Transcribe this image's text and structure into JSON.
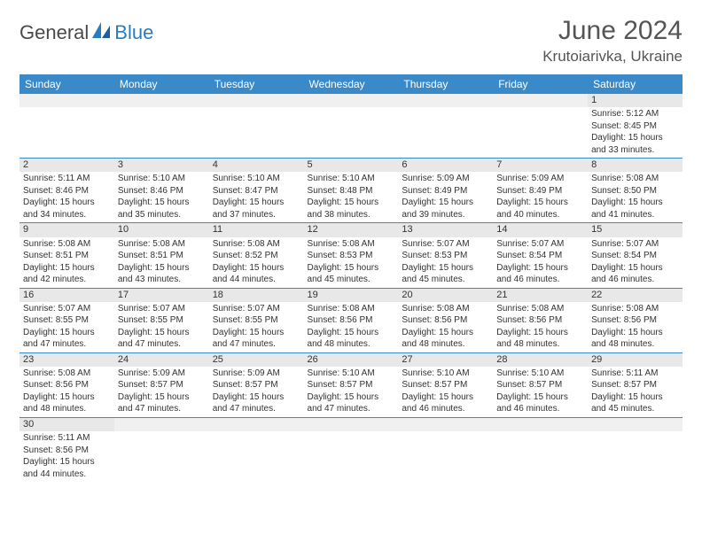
{
  "logo": {
    "general": "General",
    "blue": "Blue"
  },
  "title": {
    "month_year": "June 2024",
    "location": "Krutoiarivka, Ukraine"
  },
  "colors": {
    "header_bg": "#3a89c9",
    "header_text": "#ffffff",
    "daynum_bg": "#e8e8e8",
    "border": "#3a89c9",
    "blank_bg": "#f0f0f0",
    "text": "#333333",
    "logo_gray": "#4a4a4a",
    "logo_blue": "#2b7bbf"
  },
  "day_headers": [
    "Sunday",
    "Monday",
    "Tuesday",
    "Wednesday",
    "Thursday",
    "Friday",
    "Saturday"
  ],
  "weeks": [
    [
      null,
      null,
      null,
      null,
      null,
      null,
      {
        "n": "1",
        "sr": "Sunrise: 5:12 AM",
        "ss": "Sunset: 8:45 PM",
        "dl1": "Daylight: 15 hours",
        "dl2": "and 33 minutes."
      }
    ],
    [
      {
        "n": "2",
        "sr": "Sunrise: 5:11 AM",
        "ss": "Sunset: 8:46 PM",
        "dl1": "Daylight: 15 hours",
        "dl2": "and 34 minutes."
      },
      {
        "n": "3",
        "sr": "Sunrise: 5:10 AM",
        "ss": "Sunset: 8:46 PM",
        "dl1": "Daylight: 15 hours",
        "dl2": "and 35 minutes."
      },
      {
        "n": "4",
        "sr": "Sunrise: 5:10 AM",
        "ss": "Sunset: 8:47 PM",
        "dl1": "Daylight: 15 hours",
        "dl2": "and 37 minutes."
      },
      {
        "n": "5",
        "sr": "Sunrise: 5:10 AM",
        "ss": "Sunset: 8:48 PM",
        "dl1": "Daylight: 15 hours",
        "dl2": "and 38 minutes."
      },
      {
        "n": "6",
        "sr": "Sunrise: 5:09 AM",
        "ss": "Sunset: 8:49 PM",
        "dl1": "Daylight: 15 hours",
        "dl2": "and 39 minutes."
      },
      {
        "n": "7",
        "sr": "Sunrise: 5:09 AM",
        "ss": "Sunset: 8:49 PM",
        "dl1": "Daylight: 15 hours",
        "dl2": "and 40 minutes."
      },
      {
        "n": "8",
        "sr": "Sunrise: 5:08 AM",
        "ss": "Sunset: 8:50 PM",
        "dl1": "Daylight: 15 hours",
        "dl2": "and 41 minutes."
      }
    ],
    [
      {
        "n": "9",
        "sr": "Sunrise: 5:08 AM",
        "ss": "Sunset: 8:51 PM",
        "dl1": "Daylight: 15 hours",
        "dl2": "and 42 minutes."
      },
      {
        "n": "10",
        "sr": "Sunrise: 5:08 AM",
        "ss": "Sunset: 8:51 PM",
        "dl1": "Daylight: 15 hours",
        "dl2": "and 43 minutes."
      },
      {
        "n": "11",
        "sr": "Sunrise: 5:08 AM",
        "ss": "Sunset: 8:52 PM",
        "dl1": "Daylight: 15 hours",
        "dl2": "and 44 minutes."
      },
      {
        "n": "12",
        "sr": "Sunrise: 5:08 AM",
        "ss": "Sunset: 8:53 PM",
        "dl1": "Daylight: 15 hours",
        "dl2": "and 45 minutes."
      },
      {
        "n": "13",
        "sr": "Sunrise: 5:07 AM",
        "ss": "Sunset: 8:53 PM",
        "dl1": "Daylight: 15 hours",
        "dl2": "and 45 minutes."
      },
      {
        "n": "14",
        "sr": "Sunrise: 5:07 AM",
        "ss": "Sunset: 8:54 PM",
        "dl1": "Daylight: 15 hours",
        "dl2": "and 46 minutes."
      },
      {
        "n": "15",
        "sr": "Sunrise: 5:07 AM",
        "ss": "Sunset: 8:54 PM",
        "dl1": "Daylight: 15 hours",
        "dl2": "and 46 minutes."
      }
    ],
    [
      {
        "n": "16",
        "sr": "Sunrise: 5:07 AM",
        "ss": "Sunset: 8:55 PM",
        "dl1": "Daylight: 15 hours",
        "dl2": "and 47 minutes."
      },
      {
        "n": "17",
        "sr": "Sunrise: 5:07 AM",
        "ss": "Sunset: 8:55 PM",
        "dl1": "Daylight: 15 hours",
        "dl2": "and 47 minutes."
      },
      {
        "n": "18",
        "sr": "Sunrise: 5:07 AM",
        "ss": "Sunset: 8:55 PM",
        "dl1": "Daylight: 15 hours",
        "dl2": "and 47 minutes."
      },
      {
        "n": "19",
        "sr": "Sunrise: 5:08 AM",
        "ss": "Sunset: 8:56 PM",
        "dl1": "Daylight: 15 hours",
        "dl2": "and 48 minutes."
      },
      {
        "n": "20",
        "sr": "Sunrise: 5:08 AM",
        "ss": "Sunset: 8:56 PM",
        "dl1": "Daylight: 15 hours",
        "dl2": "and 48 minutes."
      },
      {
        "n": "21",
        "sr": "Sunrise: 5:08 AM",
        "ss": "Sunset: 8:56 PM",
        "dl1": "Daylight: 15 hours",
        "dl2": "and 48 minutes."
      },
      {
        "n": "22",
        "sr": "Sunrise: 5:08 AM",
        "ss": "Sunset: 8:56 PM",
        "dl1": "Daylight: 15 hours",
        "dl2": "and 48 minutes."
      }
    ],
    [
      {
        "n": "23",
        "sr": "Sunrise: 5:08 AM",
        "ss": "Sunset: 8:56 PM",
        "dl1": "Daylight: 15 hours",
        "dl2": "and 48 minutes."
      },
      {
        "n": "24",
        "sr": "Sunrise: 5:09 AM",
        "ss": "Sunset: 8:57 PM",
        "dl1": "Daylight: 15 hours",
        "dl2": "and 47 minutes."
      },
      {
        "n": "25",
        "sr": "Sunrise: 5:09 AM",
        "ss": "Sunset: 8:57 PM",
        "dl1": "Daylight: 15 hours",
        "dl2": "and 47 minutes."
      },
      {
        "n": "26",
        "sr": "Sunrise: 5:10 AM",
        "ss": "Sunset: 8:57 PM",
        "dl1": "Daylight: 15 hours",
        "dl2": "and 47 minutes."
      },
      {
        "n": "27",
        "sr": "Sunrise: 5:10 AM",
        "ss": "Sunset: 8:57 PM",
        "dl1": "Daylight: 15 hours",
        "dl2": "and 46 minutes."
      },
      {
        "n": "28",
        "sr": "Sunrise: 5:10 AM",
        "ss": "Sunset: 8:57 PM",
        "dl1": "Daylight: 15 hours",
        "dl2": "and 46 minutes."
      },
      {
        "n": "29",
        "sr": "Sunrise: 5:11 AM",
        "ss": "Sunset: 8:57 PM",
        "dl1": "Daylight: 15 hours",
        "dl2": "and 45 minutes."
      }
    ],
    [
      {
        "n": "30",
        "sr": "Sunrise: 5:11 AM",
        "ss": "Sunset: 8:56 PM",
        "dl1": "Daylight: 15 hours",
        "dl2": "and 44 minutes."
      },
      null,
      null,
      null,
      null,
      null,
      null
    ]
  ]
}
